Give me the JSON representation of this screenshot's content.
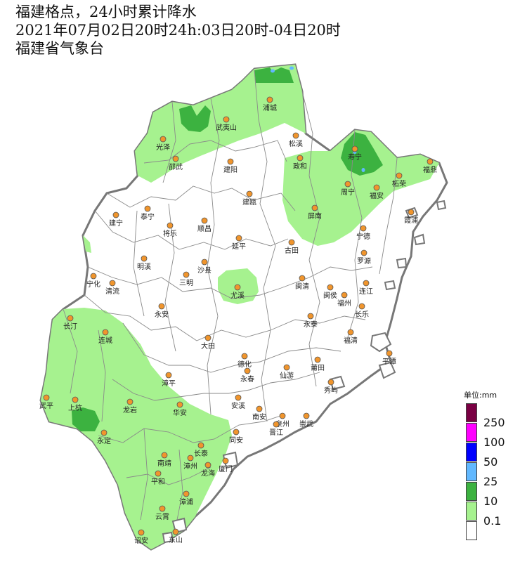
{
  "title": {
    "line1": "福建格点，24小时累计降水",
    "line2": "2021年07月02日20时24h:03日20时-04日20时",
    "line3": "福建省气象台"
  },
  "legend": {
    "unit": "单位:mm",
    "levels": [
      {
        "label": "250",
        "color": "#7a0043"
      },
      {
        "label": "100",
        "color": "#ff00ff"
      },
      {
        "label": "50",
        "color": "#0000ff"
      },
      {
        "label": "25",
        "color": "#61b8ff"
      },
      {
        "label": "10",
        "color": "#3cb240"
      },
      {
        "label": "0.1",
        "color": "#a6f28f"
      },
      {
        "label": "",
        "color": "#ffffff"
      }
    ]
  },
  "colors": {
    "light_rain": "#a6f28f",
    "moderate_rain": "#3cb240",
    "outline": "#777777",
    "station": "#f0952d"
  },
  "stations": [
    {
      "name": "浦城"
    },
    {
      "name": "武夷山"
    },
    {
      "name": "光泽"
    },
    {
      "name": "松溪"
    },
    {
      "name": "政和"
    },
    {
      "name": "邵武"
    },
    {
      "name": "建阳"
    },
    {
      "name": "寿宁"
    },
    {
      "name": "福鼎"
    },
    {
      "name": "柘荣"
    },
    {
      "name": "周宁"
    },
    {
      "name": "福安"
    },
    {
      "name": "建瓯"
    },
    {
      "name": "泰宁"
    },
    {
      "name": "建宁"
    },
    {
      "name": "将乐"
    },
    {
      "name": "顺昌"
    },
    {
      "name": "屏南"
    },
    {
      "name": "霞浦"
    },
    {
      "name": "宁德"
    },
    {
      "name": "延平"
    },
    {
      "name": "古田"
    },
    {
      "name": "罗源"
    },
    {
      "name": "明溪"
    },
    {
      "name": "沙县"
    },
    {
      "name": "三明"
    },
    {
      "name": "宁化"
    },
    {
      "name": "清流"
    },
    {
      "name": "闽清"
    },
    {
      "name": "闽侯"
    },
    {
      "name": "连江"
    },
    {
      "name": "福州"
    },
    {
      "name": "尤溪"
    },
    {
      "name": "长乐"
    },
    {
      "name": "永安"
    },
    {
      "name": "长汀"
    },
    {
      "name": "永泰"
    },
    {
      "name": "连城"
    },
    {
      "name": "福清"
    },
    {
      "name": "大田"
    },
    {
      "name": "平潭"
    },
    {
      "name": "德化"
    },
    {
      "name": "永春"
    },
    {
      "name": "仙游"
    },
    {
      "name": "莆田"
    },
    {
      "name": "秀屿"
    },
    {
      "name": "漳平"
    },
    {
      "name": "武平"
    },
    {
      "name": "上杭"
    },
    {
      "name": "龙岩"
    },
    {
      "name": "华安"
    },
    {
      "name": "安溪"
    },
    {
      "name": "南安"
    },
    {
      "name": "泉州"
    },
    {
      "name": "崇武"
    },
    {
      "name": "晋江"
    },
    {
      "name": "永定"
    },
    {
      "name": "同安"
    },
    {
      "name": "长泰"
    },
    {
      "name": "南靖"
    },
    {
      "name": "漳州"
    },
    {
      "name": "厦门"
    },
    {
      "name": "龙海"
    },
    {
      "name": "平和"
    },
    {
      "name": "漳浦"
    },
    {
      "name": "云霄"
    },
    {
      "name": "诏安"
    },
    {
      "name": "东山"
    }
  ]
}
